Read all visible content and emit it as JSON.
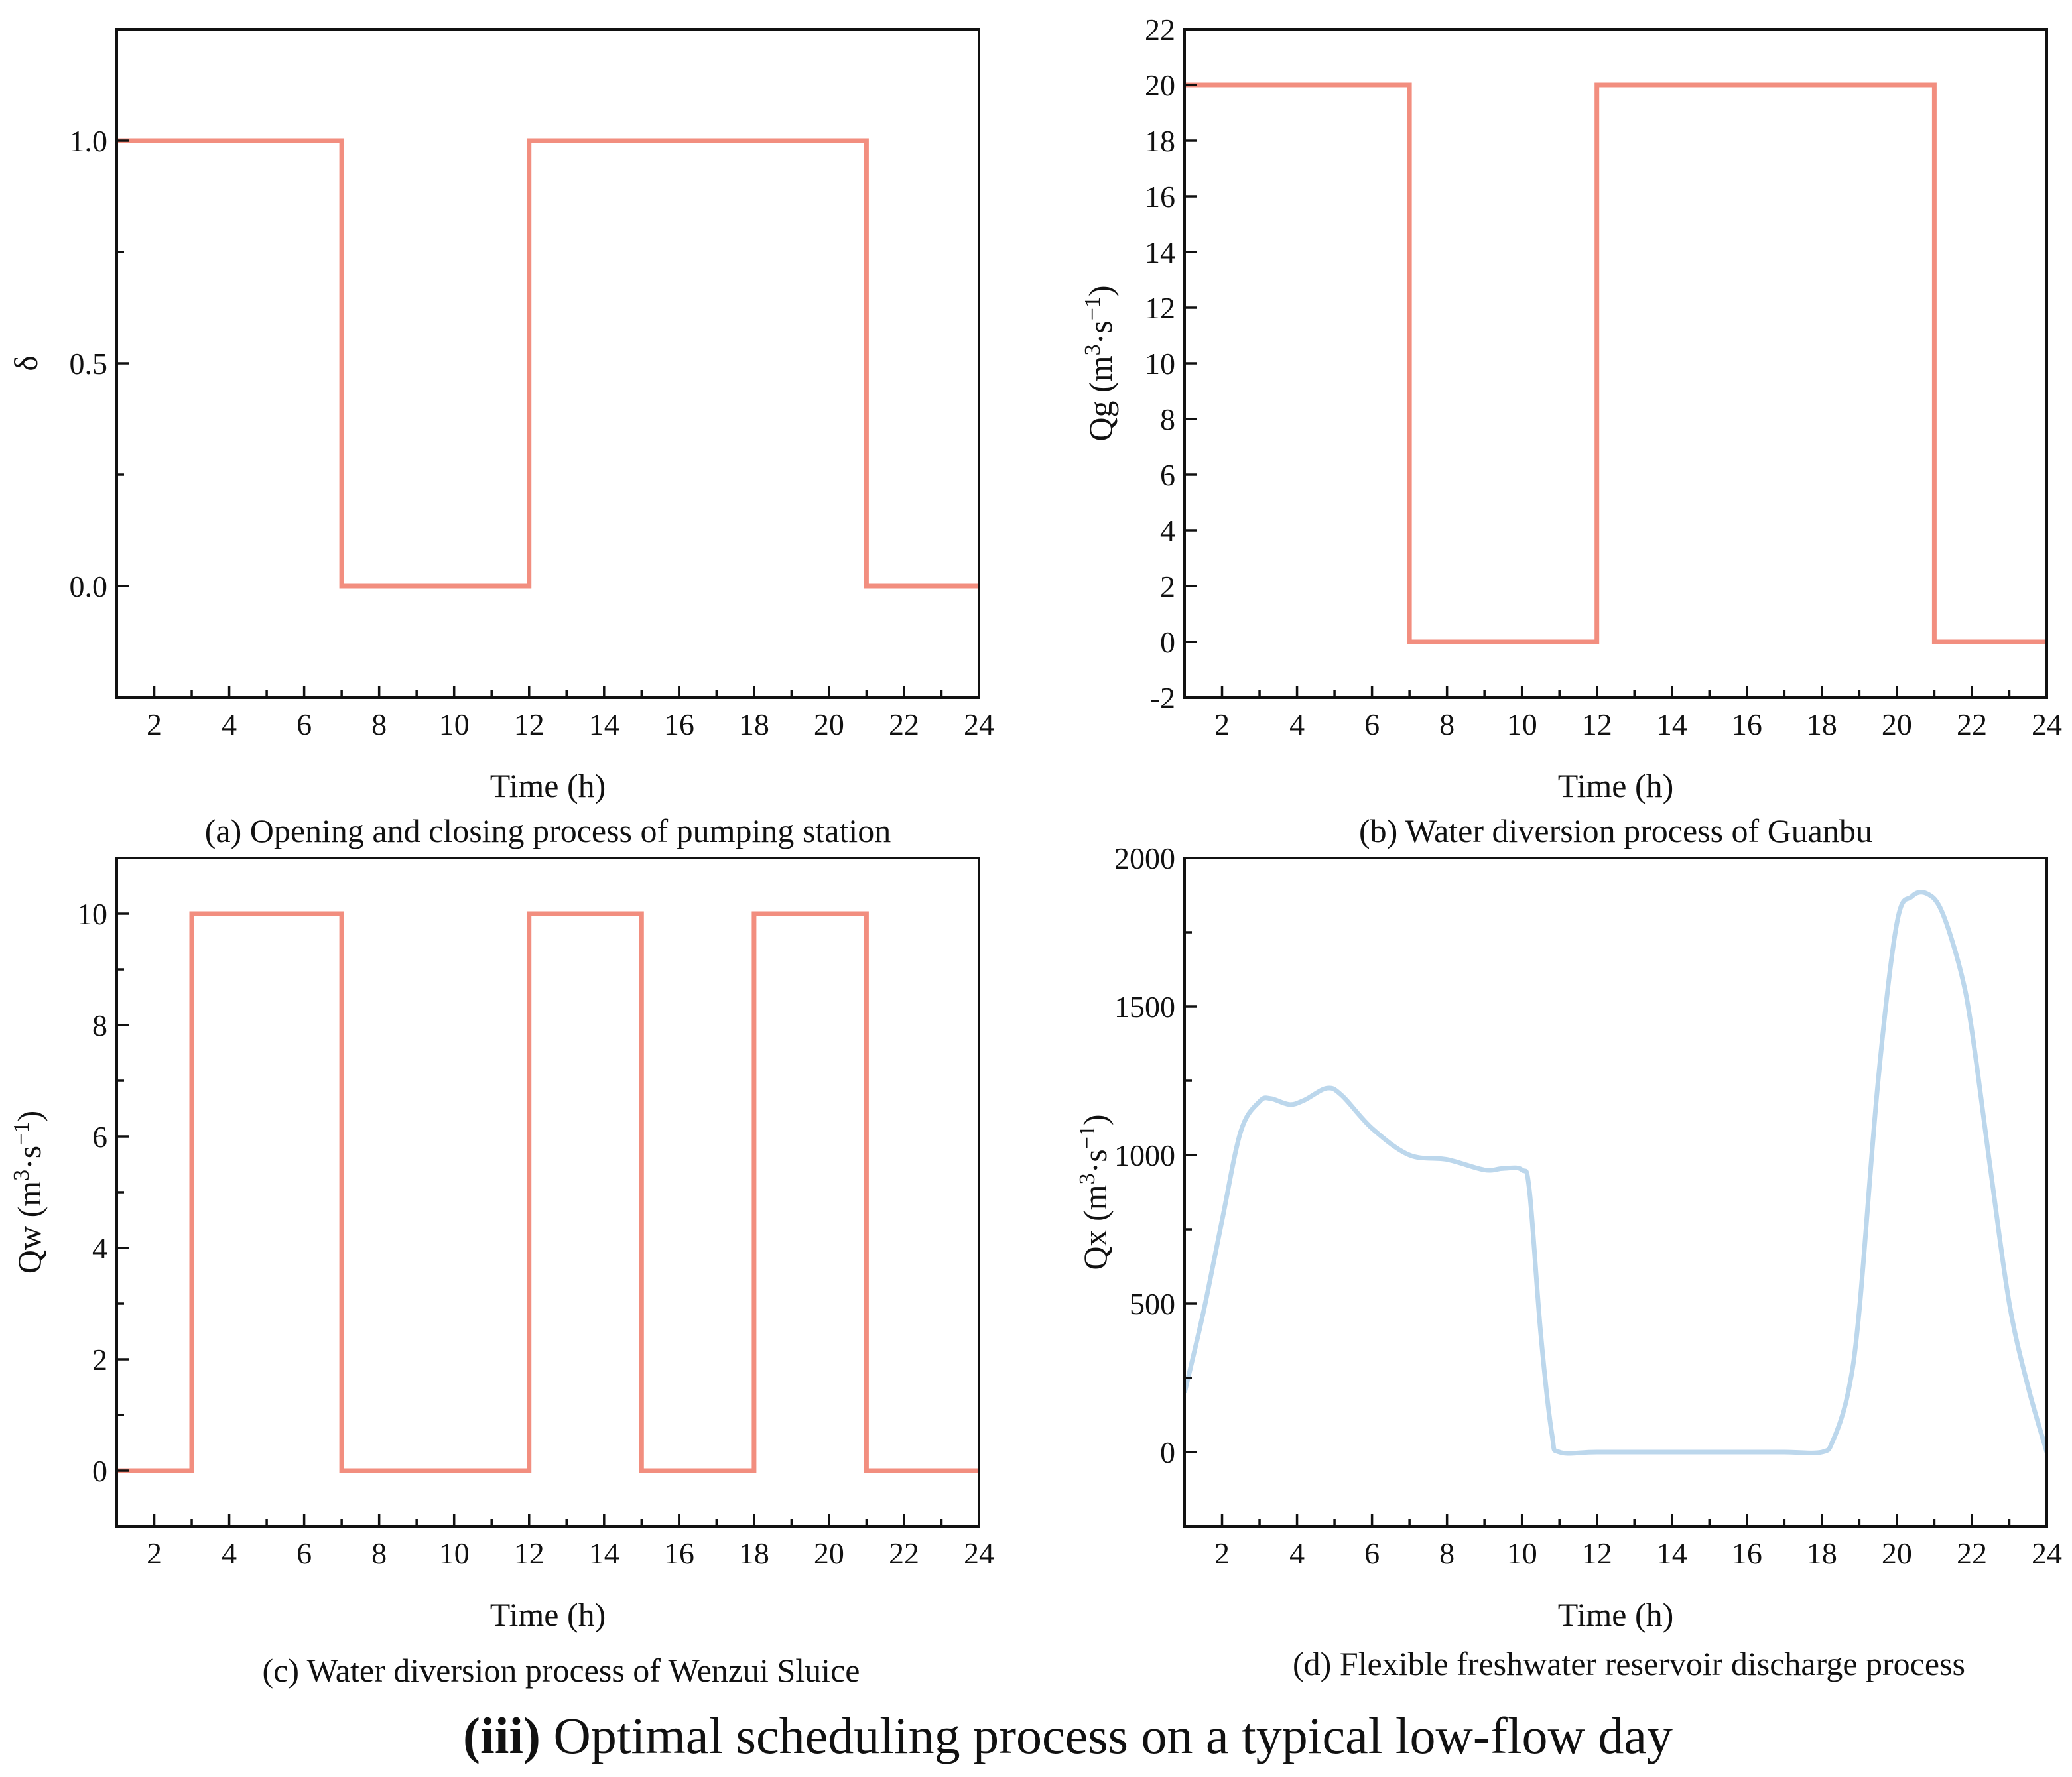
{
  "figure": {
    "caption_bold": "(iii)",
    "caption_rest": " Optimal scheduling process on a typical low-flow day"
  },
  "colors": {
    "step_line": "#F28E7F",
    "smooth_line": "#BCD7EC"
  },
  "chart_data": [
    {
      "id": "a",
      "type": "line",
      "step": true,
      "caption": "(a) Opening and closing process of pumping station",
      "xlabel": "Time (h)",
      "ylabel": "δ",
      "ylabel_parts": {
        "pre": "δ"
      },
      "xlim": [
        1,
        24
      ],
      "ylim": [
        -0.25,
        1.25
      ],
      "xticks": [
        2,
        4,
        6,
        8,
        10,
        12,
        14,
        16,
        18,
        20,
        22,
        24
      ],
      "xtick_labels": [
        "2",
        "4",
        "6",
        "8",
        "10",
        "12",
        "14",
        "16",
        "18",
        "20",
        "22",
        "24"
      ],
      "yticks": [
        0.0,
        0.5,
        1.0
      ],
      "ytick_labels": [
        "0.0",
        "0.5",
        "1.0"
      ],
      "yminor": [
        -0.25,
        0.25,
        0.75,
        1.25
      ],
      "series": [
        {
          "name": "δ",
          "color": "#F28E7F",
          "x": [
            1,
            7,
            7,
            12,
            12,
            21,
            21,
            24
          ],
          "y": [
            1,
            1,
            0,
            0,
            1,
            1,
            0,
            0
          ]
        }
      ]
    },
    {
      "id": "b",
      "type": "line",
      "step": true,
      "caption": "(b) Water diversion process of Guanbu",
      "xlabel": "Time (h)",
      "ylabel": "Qg (m3·s−1)",
      "ylabel_parts": {
        "pre": "Qg (m",
        "sup1": "3",
        "mid": "·s",
        "sup2": "−1",
        "post": ")"
      },
      "xlim": [
        1,
        24
      ],
      "ylim": [
        -2,
        22
      ],
      "xticks": [
        2,
        4,
        6,
        8,
        10,
        12,
        14,
        16,
        18,
        20,
        22,
        24
      ],
      "xtick_labels": [
        "2",
        "4",
        "6",
        "8",
        "10",
        "12",
        "14",
        "16",
        "18",
        "20",
        "22",
        "24"
      ],
      "yticks": [
        -2,
        0,
        2,
        4,
        6,
        8,
        10,
        12,
        14,
        16,
        18,
        20,
        22
      ],
      "ytick_labels": [
        "-2",
        "0",
        "2",
        "4",
        "6",
        "8",
        "10",
        "12",
        "14",
        "16",
        "18",
        "20",
        "22"
      ],
      "yminor": [],
      "series": [
        {
          "name": "Qg",
          "color": "#F28E7F",
          "x": [
            1,
            7,
            7,
            12,
            12,
            21,
            21,
            24
          ],
          "y": [
            20,
            20,
            0,
            0,
            20,
            20,
            0,
            0
          ]
        }
      ]
    },
    {
      "id": "c",
      "type": "line",
      "step": true,
      "caption": "(c) Water diversion process of Wenzui Sluice",
      "xlabel": "Time (h)",
      "ylabel": "Qw (m3·s−1)",
      "ylabel_parts": {
        "pre": "Qw (m",
        "sup1": "3",
        "mid": "·s",
        "sup2": "−1",
        "post": ")"
      },
      "xlim": [
        1,
        24
      ],
      "ylim": [
        -1,
        11
      ],
      "xticks": [
        2,
        4,
        6,
        8,
        10,
        12,
        14,
        16,
        18,
        20,
        22,
        24
      ],
      "xtick_labels": [
        "2",
        "4",
        "6",
        "8",
        "10",
        "12",
        "14",
        "16",
        "18",
        "20",
        "22",
        "24"
      ],
      "yticks": [
        0,
        2,
        4,
        6,
        8,
        10
      ],
      "ytick_labels": [
        "0",
        "2",
        "4",
        "6",
        "8",
        "10"
      ],
      "yminor": [
        -1,
        1,
        3,
        5,
        7,
        9,
        11
      ],
      "series": [
        {
          "name": "Qw",
          "color": "#F28E7F",
          "x": [
            1,
            3,
            3,
            7,
            7,
            12,
            12,
            15,
            15,
            18,
            18,
            21,
            21,
            24
          ],
          "y": [
            0,
            0,
            10,
            10,
            0,
            0,
            10,
            10,
            0,
            0,
            10,
            10,
            0,
            0
          ]
        }
      ]
    },
    {
      "id": "d",
      "type": "line",
      "step": false,
      "smooth": true,
      "caption": "(d) Flexible freshwater reservoir discharge process",
      "xlabel": "Time (h)",
      "ylabel": "Qx (m3·s−1)",
      "ylabel_parts": {
        "pre": "Qx (m",
        "sup1": "3",
        "mid": "·s",
        "sup2": "−1",
        "post": ")"
      },
      "xlim": [
        1,
        24
      ],
      "ylim": [
        -250,
        2000
      ],
      "xticks": [
        2,
        4,
        6,
        8,
        10,
        12,
        14,
        16,
        18,
        20,
        22,
        24
      ],
      "xtick_labels": [
        "2",
        "4",
        "6",
        "8",
        "10",
        "12",
        "14",
        "16",
        "18",
        "20",
        "22",
        "24"
      ],
      "yticks": [
        0,
        500,
        1000,
        1500,
        2000
      ],
      "ytick_labels": [
        "0",
        "500",
        "1000",
        "1500",
        "2000"
      ],
      "yminor": [
        -250,
        250,
        750,
        1250,
        1750
      ],
      "series": [
        {
          "name": "Qx",
          "color": "#BCD7EC",
          "x": [
            1,
            1.5,
            2,
            2.5,
            3,
            3.3,
            3.8,
            4.2,
            4.8,
            5.2,
            6,
            7,
            8,
            9,
            9.5,
            10,
            10.2,
            10.5,
            10.8,
            11,
            12,
            14,
            16,
            17,
            18,
            18.3,
            18.7,
            19,
            19.5,
            20,
            20.4,
            20.8,
            21.2,
            21.7,
            22,
            22.5,
            23,
            23.5,
            24
          ],
          "y": [
            200,
            470,
            780,
            1080,
            1180,
            1190,
            1170,
            1185,
            1225,
            1200,
            1090,
            1000,
            985,
            950,
            955,
            950,
            880,
            400,
            60,
            0,
            0,
            0,
            0,
            0,
            0,
            40,
            200,
            480,
            1250,
            1780,
            1870,
            1880,
            1820,
            1620,
            1420,
            950,
            500,
            220,
            0
          ]
        }
      ]
    }
  ]
}
